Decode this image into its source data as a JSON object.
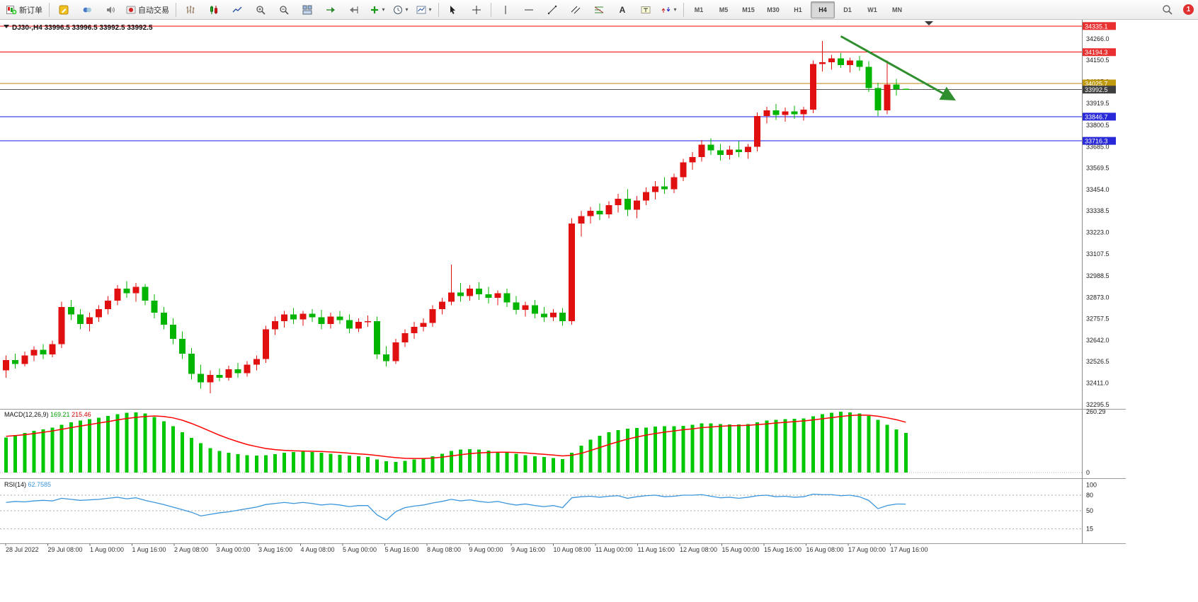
{
  "toolbar": {
    "new_order_label": "新订单",
    "autotrading_label": "自动交易",
    "timeframes": [
      "M1",
      "M5",
      "M15",
      "M30",
      "H1",
      "H4",
      "D1",
      "W1",
      "MN"
    ],
    "active_timeframe": "H4",
    "notification_count": "1"
  },
  "icons": {
    "caret": "▾",
    "text_tool": "A"
  },
  "chart_data": {
    "type": "candlestick",
    "title": "DJ30-,H4",
    "ohlc_info": {
      "open": "33996.5",
      "high": "33996.5",
      "low": "33992.5",
      "close": "33992.5"
    },
    "up_color": "#e01010",
    "down_color": "#00b400",
    "y_range": [
      32272,
      34361
    ],
    "y_ticks": [
      34266.0,
      34150.5,
      34035.0,
      33919.5,
      33800.5,
      33685.0,
      33569.5,
      33454.0,
      33338.5,
      33223.0,
      33107.5,
      32988.5,
      32873.0,
      32757.5,
      32642.0,
      32526.5,
      32411.0,
      32295.5
    ],
    "price_lines": [
      {
        "price": 34335.1,
        "label": "34335.1",
        "color": "#f20000",
        "box_color": "#e83030",
        "kind": "resistance-line"
      },
      {
        "price": 34194.3,
        "label": "34194.3",
        "color": "#f20000",
        "box_color": "#e83030",
        "kind": "resistance-line"
      },
      {
        "price": 34025.7,
        "label": "34025.7",
        "color": "#b8860b",
        "box_color": "#c09a10",
        "kind": "level-line"
      },
      {
        "price": 33992.5,
        "label": "33992.5",
        "color": "#565656",
        "box_color": "#3f3f3f",
        "kind": "current-price-line"
      },
      {
        "price": 33846.7,
        "label": "33846.7",
        "color": "#1414e6",
        "box_color": "#2828d8",
        "kind": "support-line"
      },
      {
        "price": 33716.3,
        "label": "33716.3",
        "color": "#1414e6",
        "box_color": "#2828d8",
        "kind": "support-line"
      }
    ],
    "x_labels": [
      "28 Jul 2022",
      "29 Jul 08:00",
      "1 Aug 00:00",
      "1 Aug 16:00",
      "2 Aug 08:00",
      "3 Aug 00:00",
      "3 Aug 16:00",
      "4 Aug 08:00",
      "5 Aug 00:00",
      "5 Aug 16:00",
      "8 Aug 08:00",
      "9 Aug 00:00",
      "9 Aug 16:00",
      "10 Aug 08:00",
      "11 Aug 00:00",
      "11 Aug 16:00",
      "12 Aug 08:00",
      "15 Aug 00:00",
      "15 Aug 16:00",
      "16 Aug 08:00",
      "17 Aug 00:00",
      "17 Aug 16:00"
    ],
    "candles": [
      [
        32480,
        32560,
        32440,
        32535
      ],
      [
        32535,
        32570,
        32490,
        32515
      ],
      [
        32515,
        32580,
        32500,
        32560
      ],
      [
        32560,
        32610,
        32530,
        32590
      ],
      [
        32590,
        32620,
        32540,
        32565
      ],
      [
        32565,
        32640,
        32550,
        32620
      ],
      [
        32620,
        32850,
        32600,
        32820
      ],
      [
        32820,
        32860,
        32750,
        32780
      ],
      [
        32780,
        32810,
        32700,
        32730
      ],
      [
        32730,
        32790,
        32690,
        32765
      ],
      [
        32765,
        32830,
        32740,
        32810
      ],
      [
        32810,
        32880,
        32780,
        32855
      ],
      [
        32855,
        32940,
        32830,
        32920
      ],
      [
        32920,
        32960,
        32870,
        32895
      ],
      [
        32895,
        32950,
        32850,
        32930
      ],
      [
        32930,
        32945,
        32830,
        32855
      ],
      [
        32855,
        32890,
        32760,
        32790
      ],
      [
        32790,
        32820,
        32700,
        32725
      ],
      [
        32725,
        32760,
        32620,
        32650
      ],
      [
        32650,
        32690,
        32540,
        32570
      ],
      [
        32570,
        32600,
        32430,
        32460
      ],
      [
        32460,
        32510,
        32380,
        32415
      ],
      [
        32415,
        32480,
        32355,
        32455
      ],
      [
        32455,
        32490,
        32420,
        32440
      ],
      [
        32440,
        32505,
        32425,
        32485
      ],
      [
        32485,
        32520,
        32440,
        32465
      ],
      [
        32465,
        32530,
        32445,
        32510
      ],
      [
        32510,
        32560,
        32480,
        32540
      ],
      [
        32540,
        32720,
        32520,
        32700
      ],
      [
        32700,
        32770,
        32670,
        32745
      ],
      [
        32745,
        32800,
        32710,
        32780
      ],
      [
        32780,
        32815,
        32730,
        32755
      ],
      [
        32755,
        32800,
        32720,
        32785
      ],
      [
        32785,
        32810,
        32740,
        32765
      ],
      [
        32765,
        32805,
        32700,
        32730
      ],
      [
        32730,
        32790,
        32705,
        32770
      ],
      [
        32770,
        32800,
        32730,
        32750
      ],
      [
        32750,
        32780,
        32680,
        32705
      ],
      [
        32705,
        32760,
        32685,
        32740
      ],
      [
        32740,
        32775,
        32715,
        32745
      ],
      [
        32745,
        32770,
        32540,
        32565
      ],
      [
        32565,
        32610,
        32500,
        32530
      ],
      [
        32530,
        32650,
        32515,
        32630
      ],
      [
        32630,
        32700,
        32605,
        32680
      ],
      [
        32680,
        32740,
        32650,
        32715
      ],
      [
        32715,
        32760,
        32690,
        32735
      ],
      [
        32735,
        32830,
        32715,
        32810
      ],
      [
        32810,
        32870,
        32780,
        32850
      ],
      [
        32850,
        33050,
        32830,
        32900
      ],
      [
        32900,
        32950,
        32850,
        32880
      ],
      [
        32880,
        32940,
        32855,
        32920
      ],
      [
        32920,
        32955,
        32860,
        32890
      ],
      [
        32890,
        32930,
        32840,
        32870
      ],
      [
        32870,
        32910,
        32830,
        32895
      ],
      [
        32895,
        32920,
        32820,
        32845
      ],
      [
        32845,
        32880,
        32780,
        32805
      ],
      [
        32805,
        32850,
        32770,
        32830
      ],
      [
        32830,
        32860,
        32760,
        32785
      ],
      [
        32785,
        32820,
        32740,
        32765
      ],
      [
        32765,
        32810,
        32745,
        32790
      ],
      [
        32790,
        32815,
        32720,
        32745
      ],
      [
        32745,
        33300,
        32725,
        33270
      ],
      [
        33270,
        33340,
        33200,
        33310
      ],
      [
        33310,
        33360,
        33270,
        33340
      ],
      [
        33340,
        33380,
        33290,
        33320
      ],
      [
        33320,
        33390,
        33300,
        33370
      ],
      [
        33370,
        33430,
        33330,
        33405
      ],
      [
        33405,
        33455,
        33310,
        33345
      ],
      [
        33345,
        33420,
        33300,
        33395
      ],
      [
        33395,
        33465,
        33370,
        33440
      ],
      [
        33440,
        33500,
        33400,
        33470
      ],
      [
        33470,
        33520,
        33430,
        33455
      ],
      [
        33455,
        33540,
        33435,
        33520
      ],
      [
        33520,
        33620,
        33500,
        33600
      ],
      [
        33600,
        33655,
        33560,
        33630
      ],
      [
        33630,
        33720,
        33605,
        33695
      ],
      [
        33695,
        33730,
        33640,
        33665
      ],
      [
        33665,
        33700,
        33610,
        33640
      ],
      [
        33640,
        33690,
        33615,
        33670
      ],
      [
        33670,
        33715,
        33630,
        33655
      ],
      [
        33655,
        33700,
        33620,
        33685
      ],
      [
        33685,
        33870,
        33660,
        33850
      ],
      [
        33850,
        33900,
        33810,
        33880
      ],
      [
        33880,
        33915,
        33830,
        33855
      ],
      [
        33855,
        33895,
        33820,
        33875
      ],
      [
        33875,
        33905,
        33835,
        33860
      ],
      [
        33860,
        33900,
        33825,
        33885
      ],
      [
        33885,
        34150,
        33865,
        34130
      ],
      [
        34130,
        34255,
        34090,
        34140
      ],
      [
        34140,
        34180,
        34100,
        34160
      ],
      [
        34160,
        34190,
        34110,
        34125
      ],
      [
        34125,
        34165,
        34085,
        34150
      ],
      [
        34150,
        34175,
        34095,
        34115
      ],
      [
        34115,
        34145,
        33980,
        34000
      ],
      [
        34000,
        34030,
        33850,
        33880
      ],
      [
        33880,
        34150,
        33860,
        34020
      ],
      [
        34020,
        34050,
        33960,
        33995
      ],
      [
        33996.5,
        33996.5,
        33992.5,
        33992.5
      ]
    ],
    "trend_arrow": {
      "from_bar": 90,
      "from_price": 34280,
      "to_bar": 102,
      "to_price": 33945,
      "color": "#2f8f2f"
    },
    "scroll_marker_bar": 99.5,
    "indicators": {
      "macd": {
        "label": "MACD(12,26,9)",
        "value_main": "169.21",
        "value_signal": "215.46",
        "axis_ticks": [
          "260.29",
          "0"
        ],
        "histogram_color": "#00c800",
        "signal_color": "#ff0000",
        "histogram": [
          150,
          160,
          170,
          178,
          185,
          192,
          205,
          215,
          222,
          228,
          235,
          242,
          250,
          255,
          258,
          252,
          238,
          220,
          198,
          172,
          148,
          125,
          105,
          92,
          84,
          78,
          74,
          72,
          74,
          78,
          84,
          88,
          90,
          88,
          84,
          80,
          76,
          72,
          70,
          66,
          56,
          48,
          46,
          50,
          56,
          62,
          70,
          80,
          92,
          98,
          100,
          98,
          94,
          90,
          86,
          80,
          74,
          70,
          66,
          62,
          58,
          85,
          115,
          140,
          158,
          172,
          182,
          188,
          190,
          192,
          196,
          198,
          198,
          200,
          205,
          210,
          210,
          208,
          206,
          206,
          208,
          215,
          222,
          226,
          228,
          230,
          232,
          240,
          250,
          256,
          260,
          258,
          252,
          242,
          225,
          205,
          185,
          169.21
        ],
        "signal": [
          155,
          158,
          162,
          167,
          172,
          178,
          185,
          192,
          199,
          205,
          212,
          218,
          225,
          231,
          236,
          240,
          242,
          240,
          234,
          224,
          210,
          194,
          177,
          160,
          145,
          132,
          120,
          111,
          103,
          98,
          95,
          93,
          92,
          91,
          90,
          88,
          86,
          83,
          80,
          77,
          73,
          68,
          64,
          61,
          60,
          60,
          62,
          66,
          71,
          76,
          81,
          84,
          86,
          87,
          87,
          86,
          84,
          81,
          78,
          75,
          71,
          74,
          82,
          94,
          107,
          120,
          132,
          143,
          152,
          160,
          167,
          173,
          178,
          183,
          187,
          192,
          195,
          198,
          200,
          201,
          202,
          205,
          208,
          212,
          215,
          218,
          221,
          225,
          230,
          235,
          240,
          244,
          246,
          245,
          241,
          234,
          226,
          215.46
        ]
      },
      "rsi": {
        "label": "RSI(14)",
        "value": "62.7585",
        "axis_ticks": [
          "100",
          "80",
          "50",
          "15"
        ],
        "levels": [
          80,
          50,
          15
        ],
        "color": "#3c96dc",
        "values": [
          66,
          68,
          67,
          69,
          70,
          69,
          74,
          72,
          70,
          71,
          72,
          74,
          76,
          73,
          75,
          70,
          66,
          62,
          57,
          52,
          47,
          40,
          43,
          46,
          48,
          51,
          54,
          57,
          62,
          64,
          66,
          64,
          66,
          64,
          61,
          63,
          61,
          58,
          60,
          60,
          42,
          32,
          48,
          56,
          59,
          61,
          65,
          68,
          72,
          69,
          71,
          68,
          66,
          68,
          64,
          61,
          63,
          60,
          58,
          60,
          56,
          75,
          77,
          78,
          76,
          78,
          79,
          74,
          77,
          79,
          80,
          77,
          78,
          80,
          80,
          81,
          78,
          75,
          76,
          74,
          76,
          79,
          80,
          77,
          78,
          76,
          77,
          82,
          81,
          81,
          79,
          80,
          77,
          70,
          54,
          60,
          63,
          62.76
        ]
      }
    }
  }
}
